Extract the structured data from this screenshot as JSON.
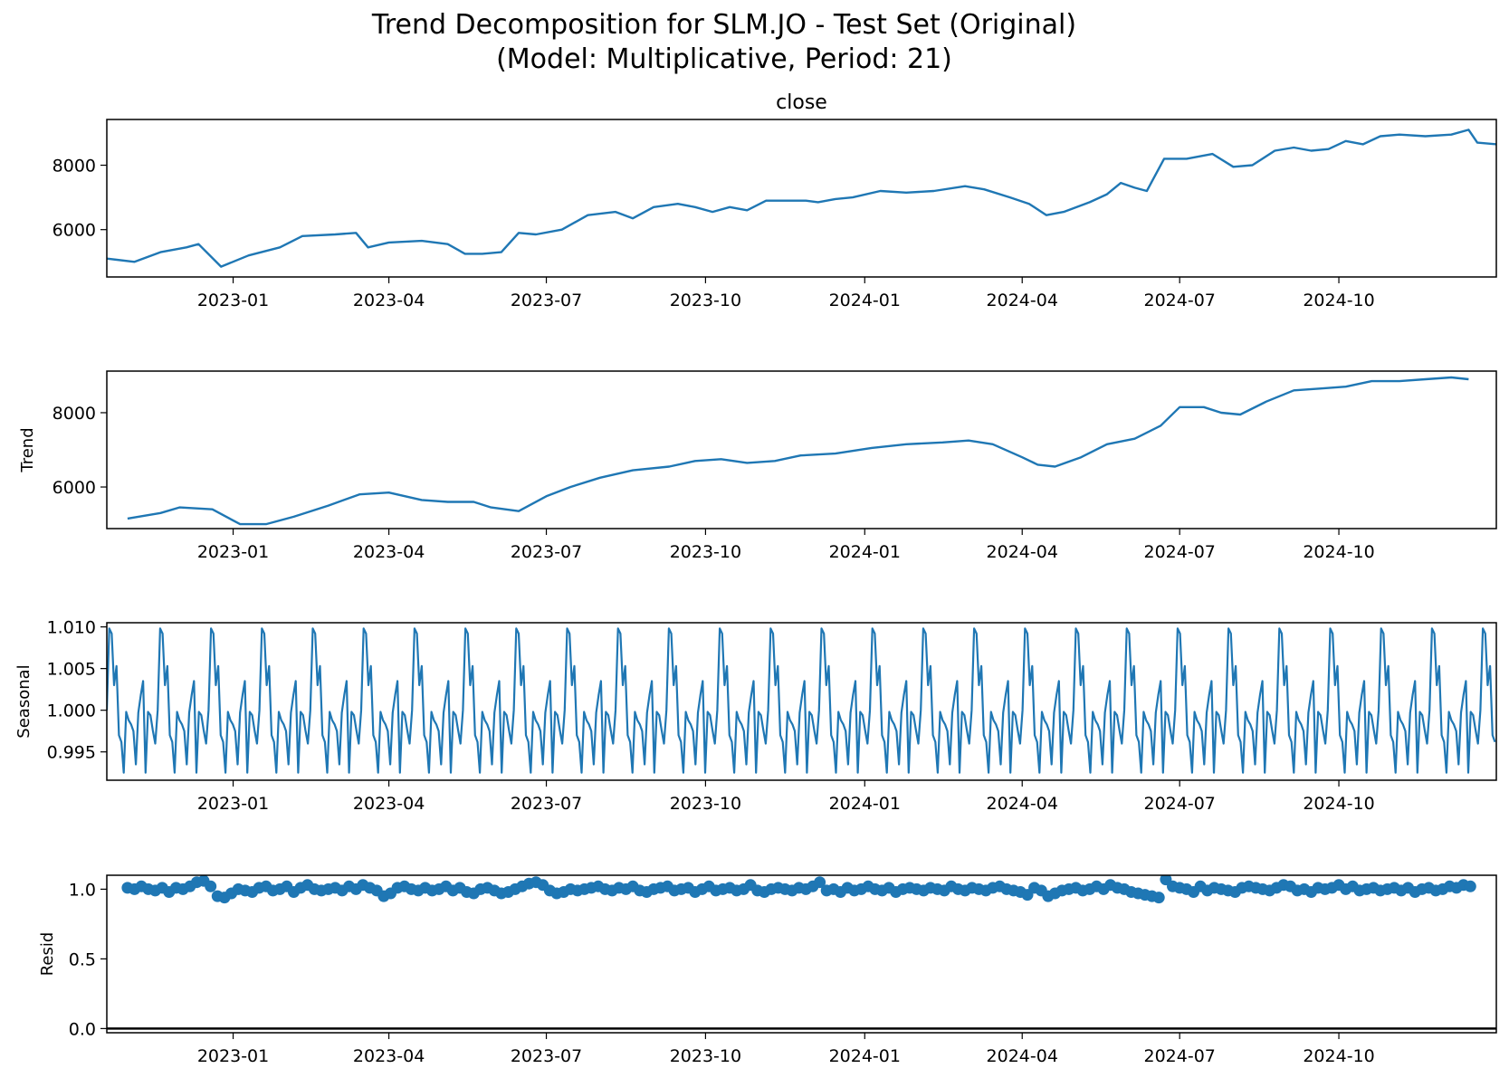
{
  "figure": {
    "title_line1": "Trend Decomposition for SLM.JO - Test Set (Original)",
    "title_line2": "(Model: Multiplicative, Period: 21)",
    "line_color": "#1f77b4"
  },
  "chart_data": [
    {
      "type": "line",
      "id": "observed",
      "title": "close",
      "ylabel": "",
      "x_type": "date",
      "xlim": [
        "2022-10-20",
        "2024-12-31"
      ],
      "ylim": [
        4530,
        9420
      ],
      "xticks": [
        "2023-01",
        "2023-04",
        "2023-07",
        "2023-10",
        "2024-01",
        "2024-04",
        "2024-07",
        "2024-10"
      ],
      "yticks": [
        6000,
        8000
      ],
      "series": [
        {
          "x": [
            "2022-10-20",
            "2022-11-05",
            "2022-11-20",
            "2022-12-05",
            "2022-12-12",
            "2022-12-25",
            "2023-01-10",
            "2023-01-28",
            "2023-02-10",
            "2023-03-01",
            "2023-03-13",
            "2023-03-20",
            "2023-04-01",
            "2023-04-20",
            "2023-05-05",
            "2023-05-15",
            "2023-05-25",
            "2023-06-05",
            "2023-06-15",
            "2023-06-25",
            "2023-07-10",
            "2023-07-25",
            "2023-08-10",
            "2023-08-20",
            "2023-09-01",
            "2023-09-15",
            "2023-09-25",
            "2023-10-05",
            "2023-10-15",
            "2023-10-25",
            "2023-11-05",
            "2023-11-20",
            "2023-11-28",
            "2023-12-05",
            "2023-12-15",
            "2023-12-25",
            "2024-01-10",
            "2024-01-25",
            "2024-02-10",
            "2024-02-28",
            "2024-03-10",
            "2024-03-25",
            "2024-04-05",
            "2024-04-15",
            "2024-04-25",
            "2024-05-10",
            "2024-05-20",
            "2024-05-28",
            "2024-06-05",
            "2024-06-12",
            "2024-06-22",
            "2024-07-05",
            "2024-07-20",
            "2024-08-01",
            "2024-08-12",
            "2024-08-25",
            "2024-09-05",
            "2024-09-15",
            "2024-09-25",
            "2024-10-05",
            "2024-10-15",
            "2024-10-25",
            "2024-11-05",
            "2024-11-20",
            "2024-12-05",
            "2024-12-15",
            "2024-12-20",
            "2024-12-31"
          ],
          "y": [
            5100,
            5000,
            5300,
            5450,
            5550,
            4850,
            5200,
            5450,
            5800,
            5850,
            5900,
            5450,
            5600,
            5650,
            5550,
            5250,
            5250,
            5300,
            5900,
            5850,
            6000,
            6450,
            6550,
            6350,
            6700,
            6800,
            6700,
            6550,
            6700,
            6600,
            6900,
            6900,
            6900,
            6850,
            6950,
            7000,
            7200,
            7150,
            7200,
            7350,
            7250,
            7000,
            6800,
            6450,
            6550,
            6850,
            7100,
            7450,
            7300,
            7200,
            8200,
            8200,
            8350,
            7950,
            8000,
            8450,
            8550,
            8450,
            8500,
            8750,
            8650,
            8900,
            8950,
            8900,
            8950,
            9100,
            8700,
            8650
          ]
        }
      ]
    },
    {
      "type": "line",
      "id": "trend",
      "title": "",
      "ylabel": "Trend",
      "x_type": "date",
      "xlim": [
        "2022-10-20",
        "2024-12-31"
      ],
      "ylim": [
        4880,
        9120
      ],
      "xticks": [
        "2023-01",
        "2023-04",
        "2023-07",
        "2023-10",
        "2024-01",
        "2024-04",
        "2024-07",
        "2024-10"
      ],
      "yticks": [
        6000,
        8000
      ],
      "series": [
        {
          "x": [
            "2022-11-01",
            "2022-11-20",
            "2022-12-01",
            "2022-12-20",
            "2023-01-05",
            "2023-01-20",
            "2023-02-05",
            "2023-02-25",
            "2023-03-15",
            "2023-04-01",
            "2023-04-20",
            "2023-05-05",
            "2023-05-20",
            "2023-05-30",
            "2023-06-15",
            "2023-07-01",
            "2023-07-15",
            "2023-08-01",
            "2023-08-20",
            "2023-09-10",
            "2023-09-25",
            "2023-10-10",
            "2023-10-25",
            "2023-11-10",
            "2023-11-25",
            "2023-12-15",
            "2024-01-05",
            "2024-01-25",
            "2024-02-15",
            "2024-03-01",
            "2024-03-15",
            "2024-04-01",
            "2024-04-10",
            "2024-04-20",
            "2024-05-05",
            "2024-05-20",
            "2024-06-05",
            "2024-06-20",
            "2024-07-01",
            "2024-07-15",
            "2024-07-25",
            "2024-08-05",
            "2024-08-20",
            "2024-09-05",
            "2024-09-20",
            "2024-10-05",
            "2024-10-20",
            "2024-11-05",
            "2024-11-20",
            "2024-12-05",
            "2024-12-15"
          ],
          "y": [
            5150,
            5300,
            5450,
            5400,
            5000,
            5000,
            5200,
            5500,
            5800,
            5850,
            5650,
            5600,
            5600,
            5450,
            5350,
            5750,
            6000,
            6250,
            6450,
            6550,
            6700,
            6750,
            6650,
            6700,
            6850,
            6900,
            7050,
            7150,
            7200,
            7250,
            7150,
            6800,
            6600,
            6550,
            6800,
            7150,
            7300,
            7650,
            8150,
            8150,
            8000,
            7950,
            8300,
            8600,
            8650,
            8700,
            8850,
            8850,
            8900,
            8950,
            8900
          ]
        }
      ]
    },
    {
      "type": "line",
      "id": "seasonal",
      "title": "",
      "ylabel": "Seasonal",
      "x_type": "date",
      "xlim": [
        "2022-10-20",
        "2024-12-31"
      ],
      "ylim": [
        0.9916,
        1.0105
      ],
      "xticks": [
        "2023-01",
        "2023-04",
        "2023-07",
        "2023-10",
        "2024-01",
        "2024-04",
        "2024-07",
        "2024-10"
      ],
      "yticks": [
        0.995,
        1.0,
        1.005,
        1.01
      ],
      "period": 21,
      "start": "2022-10-20",
      "end": "2024-12-31",
      "series": [
        {
          "name": "",
          "cycle": [
            1.0,
            1.0098,
            1.0092,
            1.003,
            1.0053,
            0.997,
            0.9962,
            0.9925,
            0.9998,
            0.9988,
            0.9983,
            0.9975,
            0.9935,
            0.9997,
            1.0018,
            1.0035,
            0.9925,
            0.9998,
            0.9994,
            0.9976,
            0.996
          ]
        }
      ]
    },
    {
      "type": "scatter",
      "id": "resid",
      "title": "",
      "ylabel": "Resid",
      "x_type": "date",
      "xlim": [
        "2022-10-20",
        "2024-12-31"
      ],
      "ylim": [
        -0.03,
        1.1
      ],
      "xticks": [
        "2023-01",
        "2023-04",
        "2023-07",
        "2023-10",
        "2024-01",
        "2024-04",
        "2024-07",
        "2024-10"
      ],
      "yticks": [
        0.0,
        0.5,
        1.0
      ],
      "baseline": 0,
      "series": [
        {
          "x": [
            "2022-11-01",
            "2022-11-05",
            "2022-11-09",
            "2022-11-13",
            "2022-11-17",
            "2022-11-21",
            "2022-11-25",
            "2022-11-29",
            "2022-12-03",
            "2022-12-07",
            "2022-12-11",
            "2022-12-15",
            "2022-12-19",
            "2022-12-23",
            "2022-12-27",
            "2022-12-31",
            "2023-01-04",
            "2023-01-08",
            "2023-01-12",
            "2023-01-16",
            "2023-01-20",
            "2023-01-24",
            "2023-01-28",
            "2023-02-01",
            "2023-02-05",
            "2023-02-09",
            "2023-02-13",
            "2023-02-17",
            "2023-02-21",
            "2023-02-25",
            "2023-03-01",
            "2023-03-05",
            "2023-03-09",
            "2023-03-13",
            "2023-03-17",
            "2023-03-21",
            "2023-03-25",
            "2023-03-29",
            "2023-04-02",
            "2023-04-06",
            "2023-04-10",
            "2023-04-14",
            "2023-04-18",
            "2023-04-22",
            "2023-04-26",
            "2023-04-30",
            "2023-05-04",
            "2023-05-08",
            "2023-05-12",
            "2023-05-16",
            "2023-05-20",
            "2023-05-24",
            "2023-05-28",
            "2023-06-01",
            "2023-06-05",
            "2023-06-09",
            "2023-06-13",
            "2023-06-17",
            "2023-06-21",
            "2023-06-25",
            "2023-06-29",
            "2023-07-03",
            "2023-07-07",
            "2023-07-11",
            "2023-07-15",
            "2023-07-19",
            "2023-07-23",
            "2023-07-27",
            "2023-07-31",
            "2023-08-04",
            "2023-08-08",
            "2023-08-12",
            "2023-08-16",
            "2023-08-20",
            "2023-08-24",
            "2023-08-28",
            "2023-09-01",
            "2023-09-05",
            "2023-09-09",
            "2023-09-13",
            "2023-09-17",
            "2023-09-21",
            "2023-09-25",
            "2023-09-29",
            "2023-10-03",
            "2023-10-07",
            "2023-10-11",
            "2023-10-15",
            "2023-10-19",
            "2023-10-23",
            "2023-10-27",
            "2023-10-31",
            "2023-11-04",
            "2023-11-08",
            "2023-11-12",
            "2023-11-16",
            "2023-11-20",
            "2023-11-24",
            "2023-11-28",
            "2023-12-02",
            "2023-12-06",
            "2023-12-10",
            "2023-12-14",
            "2023-12-18",
            "2023-12-22",
            "2023-12-26",
            "2023-12-30",
            "2024-01-03",
            "2024-01-07",
            "2024-01-11",
            "2024-01-15",
            "2024-01-19",
            "2024-01-23",
            "2024-01-27",
            "2024-01-31",
            "2024-02-04",
            "2024-02-08",
            "2024-02-12",
            "2024-02-16",
            "2024-02-20",
            "2024-02-24",
            "2024-02-28",
            "2024-03-03",
            "2024-03-07",
            "2024-03-11",
            "2024-03-15",
            "2024-03-19",
            "2024-03-23",
            "2024-03-27",
            "2024-03-31",
            "2024-04-04",
            "2024-04-08",
            "2024-04-12",
            "2024-04-16",
            "2024-04-20",
            "2024-04-24",
            "2024-04-28",
            "2024-05-02",
            "2024-05-06",
            "2024-05-10",
            "2024-05-14",
            "2024-05-18",
            "2024-05-22",
            "2024-05-26",
            "2024-05-30",
            "2024-06-03",
            "2024-06-07",
            "2024-06-11",
            "2024-06-15",
            "2024-06-19",
            "2024-06-23",
            "2024-06-27",
            "2024-07-01",
            "2024-07-05",
            "2024-07-09",
            "2024-07-13",
            "2024-07-17",
            "2024-07-21",
            "2024-07-25",
            "2024-07-29",
            "2024-08-02",
            "2024-08-06",
            "2024-08-10",
            "2024-08-14",
            "2024-08-18",
            "2024-08-22",
            "2024-08-26",
            "2024-08-30",
            "2024-09-03",
            "2024-09-07",
            "2024-09-11",
            "2024-09-15",
            "2024-09-19",
            "2024-09-23",
            "2024-09-27",
            "2024-10-01",
            "2024-10-05",
            "2024-10-09",
            "2024-10-13",
            "2024-10-17",
            "2024-10-21",
            "2024-10-25",
            "2024-10-29",
            "2024-11-02",
            "2024-11-06",
            "2024-11-10",
            "2024-11-14",
            "2024-11-18",
            "2024-11-22",
            "2024-11-26",
            "2024-11-30",
            "2024-12-04",
            "2024-12-08",
            "2024-12-12",
            "2024-12-16"
          ],
          "y": [
            1.01,
            1.0,
            1.02,
            1.0,
            0.99,
            1.01,
            0.98,
            1.01,
            1.0,
            1.02,
            1.05,
            1.06,
            1.02,
            0.95,
            0.94,
            0.97,
            1.0,
            0.99,
            0.98,
            1.01,
            1.02,
            0.99,
            1.0,
            1.02,
            0.98,
            1.01,
            1.03,
            1.0,
            0.99,
            1.0,
            1.01,
            0.99,
            1.02,
            1.0,
            1.03,
            1.01,
            0.99,
            0.95,
            0.97,
            1.01,
            1.02,
            1.0,
            0.99,
            1.01,
            0.99,
            1.0,
            1.02,
            0.99,
            1.01,
            0.98,
            0.97,
            1.0,
            1.01,
            0.99,
            0.97,
            0.98,
            1.0,
            1.02,
            1.04,
            1.05,
            1.03,
            0.99,
            0.97,
            0.98,
            1.0,
            0.99,
            1.0,
            1.01,
            1.02,
            1.0,
            0.99,
            1.01,
            1.0,
            1.02,
            0.99,
            0.98,
            1.0,
            1.01,
            1.02,
            0.99,
            1.0,
            1.01,
            0.98,
            1.0,
            1.02,
            0.99,
            1.0,
            1.01,
            0.99,
            1.0,
            1.03,
            0.99,
            0.98,
            1.0,
            1.01,
            1.0,
            0.99,
            1.01,
            1.0,
            1.02,
            1.05,
            0.99,
            1.0,
            0.98,
            1.01,
            0.99,
            1.0,
            1.02,
            1.0,
            0.99,
            1.01,
            0.98,
            1.0,
            1.01,
            1.0,
            0.99,
            1.01,
            1.0,
            0.99,
            1.02,
            1.0,
            0.99,
            1.01,
            1.0,
            0.99,
            1.01,
            1.02,
            1.0,
            0.99,
            0.98,
            0.96,
            1.01,
            0.99,
            0.95,
            0.97,
            0.99,
            1.0,
            1.01,
            0.99,
            1.0,
            1.02,
            1.0,
            1.03,
            1.01,
            1.0,
            0.98,
            0.97,
            0.96,
            0.95,
            0.94,
            1.07,
            1.02,
            1.01,
            1.0,
            0.98,
            1.02,
            0.99,
            1.01,
            1.0,
            0.99,
            0.98,
            1.01,
            1.02,
            1.01,
            1.0,
            0.99,
            1.01,
            1.03,
            1.02,
            0.99,
            1.0,
            0.98,
            1.01,
            1.0,
            1.01,
            1.03,
            1.0,
            1.02,
            0.99,
            1.0,
            1.01,
            0.99,
            1.0,
            1.01,
            0.99,
            1.01,
            0.98,
            1.0,
            1.01,
            0.99,
            1.0,
            1.02,
            1.01,
            1.03,
            1.02
          ]
        }
      ]
    }
  ]
}
